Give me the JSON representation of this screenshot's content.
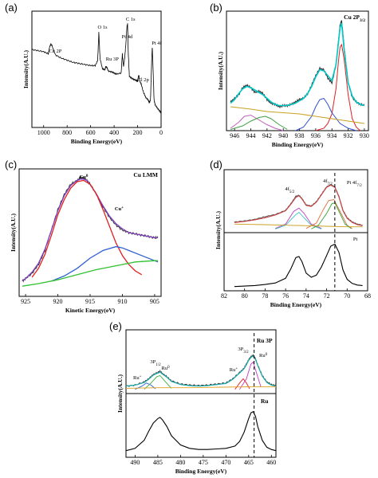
{
  "panel_labels": {
    "a": "(a)",
    "b": "(b)",
    "c": "(c)",
    "d": "(d)",
    "e": "(e)"
  },
  "chart_data": [
    {
      "id": "a",
      "type": "line",
      "xlabel": "Binding Energy(eV)",
      "ylabel": "Intensity(A.U.)",
      "xlim": [
        1100,
        0
      ],
      "xticks": [
        1000,
        800,
        600,
        400,
        200,
        0
      ],
      "annotations": [
        "Cu 2P",
        "O 1s",
        "Ru 3P",
        "Pt 4d",
        "C 1s",
        "Pt 4f",
        "Cl 2p"
      ],
      "series": [
        {
          "color": "#000000",
          "x": [
            1100,
            1050,
            1000,
            960,
            950,
            940,
            930,
            900,
            850,
            800,
            750,
            700,
            650,
            600,
            560,
            540,
            530,
            520,
            500,
            480,
            470,
            460,
            450,
            420,
            400,
            380,
            340,
            330,
            320,
            310,
            300,
            290,
            285,
            280,
            270,
            250,
            230,
            210,
            200,
            195,
            190,
            180,
            170,
            150,
            130,
            110,
            100,
            90,
            80,
            75,
            70,
            60,
            50,
            30,
            10,
            0
          ],
          "y": [
            70,
            69,
            68,
            66,
            72,
            75,
            74,
            65,
            62,
            60,
            58,
            57,
            56,
            55,
            55,
            60,
            86,
            62,
            52,
            51,
            54,
            53,
            50,
            49,
            48,
            47,
            48,
            66,
            54,
            62,
            75,
            92,
            94,
            68,
            45,
            43,
            42,
            41,
            40,
            44,
            46,
            40,
            38,
            30,
            25,
            23,
            20,
            23,
            60,
            72,
            58,
            23,
            18,
            15,
            12,
            10
          ]
        }
      ]
    },
    {
      "id": "b",
      "type": "line",
      "xlabel": "Binding Energy(eV)",
      "ylabel": "Intensity(A.U.)",
      "title": "Cu 2P3/2",
      "xlim": [
        947,
        929.5
      ],
      "xticks": [
        946,
        944,
        942,
        940,
        938,
        936,
        934,
        932,
        930
      ],
      "series": [
        {
          "name": "raw",
          "color": "#333333",
          "x": [
            946.5,
            946,
            945.5,
            945,
            944.5,
            944,
            943.5,
            943,
            942.5,
            942,
            941.5,
            941,
            940.5,
            940,
            939.5,
            939,
            938.5,
            938,
            937.5,
            937,
            936.5,
            936,
            935.5,
            935,
            934.5,
            934,
            933.5,
            933,
            932.8,
            932.5,
            932,
            931.5,
            931,
            930.5,
            930
          ],
          "y": [
            24,
            27,
            30,
            36,
            38,
            36,
            32,
            33,
            31,
            26,
            23,
            22,
            20,
            21,
            21,
            22,
            24,
            26,
            27,
            31,
            38,
            46,
            52,
            51,
            44,
            40,
            55,
            88,
            92,
            70,
            40,
            28,
            24,
            22,
            21
          ]
        },
        {
          "name": "fit",
          "color": "#00c8c8",
          "x": [
            946.5,
            946,
            945.5,
            945,
            944.5,
            944,
            943.5,
            943,
            942.5,
            942,
            941.5,
            941,
            940.5,
            940,
            939.5,
            939,
            938.5,
            938,
            937.5,
            937,
            936.5,
            936,
            935.5,
            935,
            934.5,
            934,
            933.5,
            933,
            932.8,
            932.5,
            932,
            931.5,
            931,
            930.5,
            930
          ],
          "y": [
            23,
            26,
            31,
            35,
            37,
            36,
            34,
            32,
            30,
            27,
            24,
            22,
            21,
            21,
            21,
            22,
            23,
            25,
            27,
            31,
            37,
            45,
            51,
            50,
            46,
            42,
            55,
            86,
            90,
            68,
            40,
            29,
            24,
            22,
            21
          ]
        },
        {
          "name": "peak-main",
          "color": "#e02020",
          "x": [
            936,
            935,
            934.5,
            934,
            933.5,
            933.2,
            933,
            932.8,
            932.5,
            932,
            931.5,
            931,
            930.5
          ],
          "y": [
            0,
            2,
            6,
            14,
            35,
            58,
            70,
            72,
            60,
            30,
            10,
            3,
            0
          ]
        },
        {
          "name": "peak-shoulder",
          "color": "#3050d0",
          "x": [
            938.5,
            937.5,
            936.5,
            936,
            935.5,
            935,
            934.5,
            934,
            933,
            932,
            931
          ],
          "y": [
            0,
            3,
            12,
            20,
            26,
            27,
            22,
            15,
            6,
            2,
            0
          ]
        },
        {
          "name": "satellite-1",
          "color": "#c060c0",
          "x": [
            946.5,
            945.5,
            944.8,
            944,
            943,
            942,
            941,
            940
          ],
          "y": [
            2,
            7,
            12,
            13,
            9,
            5,
            2,
            0
          ]
        },
        {
          "name": "satellite-2",
          "color": "#40a040",
          "x": [
            946.5,
            945,
            944,
            943,
            942.2,
            941.5,
            940.5,
            939.5
          ],
          "y": [
            1,
            4,
            8,
            11,
            12,
            10,
            5,
            1
          ]
        },
        {
          "name": "background",
          "color": "#c8a020",
          "x": [
            946.5,
            944,
            942,
            940,
            938,
            936,
            934,
            932,
            930
          ],
          "y": [
            20,
            18,
            16,
            15,
            14,
            12,
            10,
            8,
            6
          ]
        }
      ]
    },
    {
      "id": "c",
      "type": "line",
      "xlabel": "Kinetic Energy(eV)",
      "ylabel": "Intensity(A.U.)",
      "title": "Cu LMM",
      "xlim": [
        926,
        904
      ],
      "xticks": [
        925,
        920,
        915,
        910,
        905
      ],
      "annotations": [
        "Cu0",
        "Cu+"
      ],
      "series": [
        {
          "name": "raw",
          "color": "#333333",
          "x": [
            925.5,
            925,
            924,
            923,
            922,
            921,
            920,
            919,
            918,
            917,
            916.5,
            916,
            915.5,
            915,
            914,
            913,
            912,
            911,
            910,
            909,
            908,
            907,
            906,
            905,
            904.5
          ],
          "y": [
            12,
            14,
            18,
            25,
            36,
            52,
            68,
            80,
            88,
            91,
            93,
            93,
            91,
            88,
            80,
            70,
            62,
            56,
            52,
            50,
            49,
            48,
            47,
            46,
            46
          ]
        },
        {
          "name": "fit",
          "color": "#8040c0",
          "x": [
            925.5,
            925,
            924,
            923,
            922,
            921,
            920,
            919,
            918,
            917,
            916.5,
            916,
            915.5,
            915,
            914,
            913,
            912,
            911,
            910,
            909,
            908,
            907,
            906,
            905,
            904.5
          ],
          "y": [
            12,
            14,
            19,
            26,
            37,
            52,
            67,
            79,
            87,
            91,
            92,
            92,
            91,
            88,
            80,
            71,
            63,
            57,
            53,
            50,
            49,
            48,
            47,
            46,
            46
          ]
        },
        {
          "name": "Cu0",
          "color": "#e02020",
          "x": [
            924,
            923,
            922,
            921,
            920,
            919,
            918,
            917,
            916,
            915,
            914,
            913,
            912,
            911,
            910,
            909,
            908,
            907
          ],
          "y": [
            15,
            22,
            33,
            48,
            64,
            76,
            85,
            90,
            91,
            88,
            80,
            68,
            55,
            42,
            32,
            25,
            20,
            17
          ]
        },
        {
          "name": "Cu+",
          "color": "#3060d0",
          "x": [
            921,
            919,
            917,
            915,
            913,
            911,
            910,
            909,
            907,
            905,
            904.5
          ],
          "y": [
            12,
            16,
            22,
            30,
            36,
            39,
            38,
            36,
            32,
            28,
            27
          ]
        },
        {
          "name": "background",
          "color": "#30c030",
          "x": [
            925.5,
            923,
            920,
            917,
            914,
            911,
            908,
            905,
            904.5
          ],
          "y": [
            8,
            10,
            13,
            17,
            21,
            24,
            27,
            28,
            28
          ]
        }
      ]
    },
    {
      "id": "d",
      "type": "line",
      "xlabel": "Binding Energy(eV)",
      "ylabel": "Intensity(A.U.)",
      "xlim": [
        82,
        68
      ],
      "xticks": [
        82,
        80,
        78,
        76,
        74,
        72,
        70,
        68
      ],
      "annotations": [
        "4f5/2",
        "4f7/2",
        "Pt 4f7/2",
        "Pt"
      ],
      "dashed_x": 71.2,
      "series": [
        {
          "name": "raw-top",
          "color": "#555555",
          "x": [
            81,
            80,
            79,
            78,
            77,
            76,
            75.5,
            75,
            74.7,
            74.4,
            74,
            73.5,
            73,
            72.5,
            72,
            71.6,
            71.2,
            70.8,
            70.4,
            70,
            69.5,
            69,
            68.5
          ],
          "y": [
            14,
            16,
            19,
            24,
            28,
            36,
            48,
            62,
            64,
            58,
            46,
            44,
            52,
            66,
            80,
            84,
            80,
            62,
            36,
            22,
            14,
            10,
            8
          ]
        },
        {
          "name": "fit-top",
          "color": "#d04040",
          "x": [
            81,
            80,
            79,
            78,
            77,
            76,
            75.5,
            75,
            74.7,
            74.4,
            74,
            73.5,
            73,
            72.5,
            72,
            71.6,
            71.2,
            70.8,
            70.4,
            70,
            69.5,
            69,
            68.5
          ],
          "y": [
            13,
            15,
            18,
            22,
            27,
            35,
            47,
            60,
            63,
            57,
            45,
            43,
            51,
            65,
            79,
            83,
            79,
            61,
            35,
            21,
            13,
            9,
            7
          ]
        },
        {
          "name": "raw-bottom",
          "color": "#000000",
          "x": [
            81,
            80,
            79,
            78,
            77,
            76,
            75.5,
            75,
            74.7,
            74.4,
            74,
            73.5,
            73,
            72.5,
            72,
            71.6,
            71.2,
            70.8,
            70.4,
            70,
            69.5,
            69,
            68.5
          ],
          "y": [
            2,
            3,
            4,
            6,
            9,
            18,
            36,
            58,
            60,
            50,
            28,
            20,
            24,
            40,
            62,
            80,
            84,
            68,
            34,
            16,
            8,
            5,
            4
          ]
        }
      ]
    },
    {
      "id": "e",
      "type": "line",
      "xlabel": "Binding Energy(eV)",
      "ylabel": "Intensity(A.U.)",
      "xlim": [
        492,
        459
      ],
      "xticks": [
        490,
        485,
        480,
        475,
        470,
        465,
        460
      ],
      "annotations": [
        "Ru 3P",
        "Ru+",
        "3P1/2",
        "Ru0",
        "3P3/2",
        "Ru+",
        "Ru0",
        "Ru"
      ],
      "dashed_x": 463.8,
      "series": [
        {
          "name": "raw-top",
          "color": "#333333",
          "x": [
            492,
            490,
            488,
            487,
            486,
            485,
            484.5,
            484,
            483,
            482,
            480,
            478,
            476,
            474,
            472,
            470,
            468.5,
            467,
            466,
            465.5,
            465,
            464.5,
            464,
            463.5,
            463,
            462,
            461,
            460,
            459
          ],
          "y": [
            8,
            10,
            16,
            22,
            30,
            34,
            36,
            32,
            26,
            18,
            12,
            10,
            9,
            10,
            12,
            14,
            22,
            34,
            42,
            50,
            58,
            64,
            66,
            60,
            48,
            28,
            16,
            11,
            9
          ]
        },
        {
          "name": "fit-top",
          "color": "#20b0b0",
          "x": [
            492,
            490,
            488,
            487,
            486,
            485,
            484.5,
            484,
            483,
            482,
            480,
            478,
            476,
            474,
            472,
            470,
            468.5,
            467,
            466,
            465.5,
            465,
            464.5,
            464,
            463.5,
            463,
            462,
            461,
            460,
            459
          ],
          "y": [
            8,
            10,
            15,
            21,
            29,
            33,
            35,
            31,
            25,
            17,
            11,
            9,
            8,
            9,
            11,
            13,
            21,
            33,
            41,
            49,
            57,
            63,
            65,
            59,
            47,
            27,
            15,
            10,
            8
          ]
        },
        {
          "name": "raw-bottom",
          "color": "#000000",
          "x": [
            492,
            490,
            488,
            487,
            486,
            485,
            484.5,
            484,
            483,
            482,
            480,
            478,
            476,
            474,
            472,
            470,
            468,
            467,
            466,
            465,
            464.5,
            464,
            463.5,
            463,
            462,
            461,
            460,
            459
          ],
          "y": [
            6,
            10,
            24,
            40,
            54,
            62,
            64,
            60,
            48,
            32,
            16,
            10,
            8,
            8,
            9,
            10,
            14,
            22,
            38,
            62,
            72,
            74,
            66,
            48,
            24,
            12,
            8,
            6
          ]
        }
      ]
    }
  ]
}
